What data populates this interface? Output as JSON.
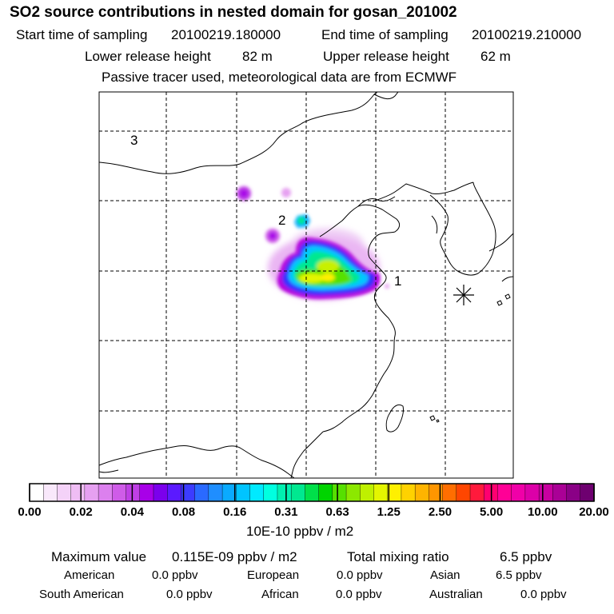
{
  "header": {
    "title": "SO2 source contributions in nested domain for gosan_201002",
    "start_label": "Start time of sampling",
    "start_value": "20100219.180000",
    "end_label": "End time of sampling",
    "end_value": "20100219.210000",
    "lower_label": "Lower release height",
    "lower_value": "82 m",
    "upper_label": "Upper release height",
    "upper_value": "62 m",
    "note": "Passive tracer used, meteorological data are from ECMWF"
  },
  "map": {
    "region_labels": [
      "1",
      "2",
      "3"
    ],
    "receptor_marker": "asterisk-icon"
  },
  "colorbar": {
    "colors": [
      "#ffffff",
      "#f9e8fb",
      "#f4d2f8",
      "#efbdf4",
      "#e6a0f1",
      "#dc80ee",
      "#cf5ce8",
      "#bf3fe5",
      "#a800e8",
      "#7b00ec",
      "#5b1aff",
      "#3c3cff",
      "#2a6aff",
      "#1f8eff",
      "#0aaaff",
      "#00c4ff",
      "#00eaff",
      "#00ffe0",
      "#00f0b0",
      "#00e890",
      "#00e04a",
      "#00d400",
      "#56e000",
      "#8ce800",
      "#bff000",
      "#e4f500",
      "#fff000",
      "#ffd200",
      "#ffb400",
      "#ff9600",
      "#ff6e00",
      "#ff4600",
      "#ff1a3c",
      "#ff0070",
      "#ff0096",
      "#f000a8",
      "#dc00a8",
      "#c800a0",
      "#aa0096",
      "#8a0086",
      "#6e0070"
    ],
    "tick_labels": [
      "0.00",
      "0.02",
      "0.04",
      "0.08",
      "0.16",
      "0.31",
      "0.63",
      "1.25",
      "2.50",
      "5.00",
      "10.00",
      "20.00"
    ],
    "unit_label": "10E-10 ppbv / m2"
  },
  "summary": {
    "max_label": "Maximum value",
    "max_value": "0.115E-09 ppbv / m2",
    "total_label": "Total mixing ratio",
    "total_value": "6.5 ppbv",
    "regions": [
      {
        "name": "American",
        "value": "0.0 ppbv"
      },
      {
        "name": "European",
        "value": "0.0 ppbv"
      },
      {
        "name": "Asian",
        "value": "6.5 ppbv"
      },
      {
        "name": "South American",
        "value": "0.0 ppbv"
      },
      {
        "name": "African",
        "value": "0.0 ppbv"
      },
      {
        "name": "Australian",
        "value": "0.0 ppbv"
      }
    ]
  }
}
